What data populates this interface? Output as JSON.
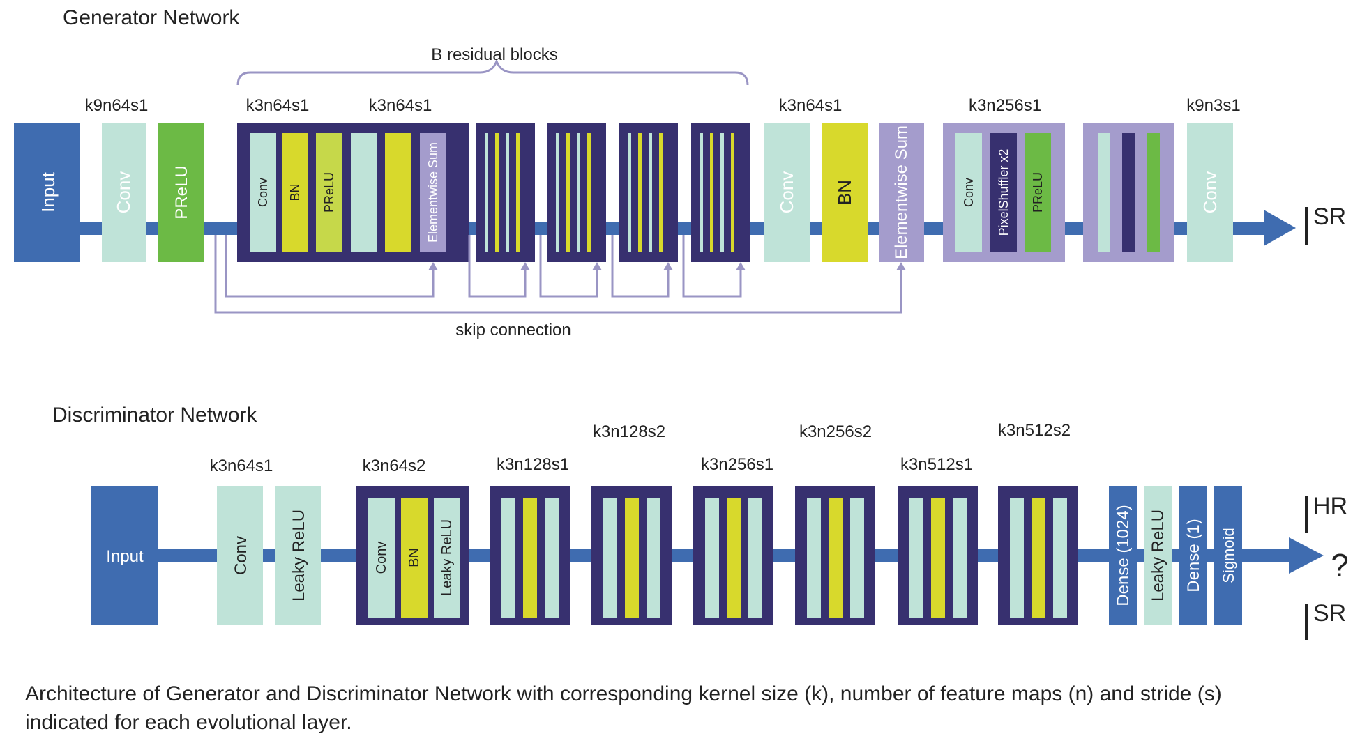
{
  "colors": {
    "input_blue": "#3f6cb0",
    "conv_mint": "#bfe3d8",
    "prelu_green": "#6cba45",
    "bn_yellow": "#d8d92c",
    "block_navy": "#37306f",
    "sum_lavender": "#a49ccc",
    "arrow_blue": "#3f6cb0",
    "skip_line": "#9a95c4",
    "text_dark": "#222222"
  },
  "generator": {
    "title": "Generator Network",
    "input_label": "Input",
    "conv1": {
      "param": "k9n64s1",
      "label": "Conv"
    },
    "prelu1_label": "PReLU",
    "residual": {
      "brace_label": "B residual blocks",
      "param_a": "k3n64s1",
      "param_b": "k3n64s1",
      "conv_label": "Conv",
      "bn_label": "BN",
      "prelu_label": "PReLU",
      "sum_label": "Elementwise Sum"
    },
    "post": {
      "param": "k3n64s1",
      "conv_label": "Conv",
      "bn_label": "BN",
      "sum_label": "Elementwise Sum"
    },
    "upsample": {
      "param": "k3n256s1",
      "conv_label": "Conv",
      "shuffle_label": "PixelShuffler x2",
      "prelu_label": "PReLU"
    },
    "final_conv": {
      "param": "k9n3s1",
      "label": "Conv"
    },
    "skip_label": "skip connection",
    "output": {
      "base": "I",
      "sup": "SR"
    }
  },
  "discriminator": {
    "title": "Discriminator Network",
    "input_label": "Input",
    "conv1": {
      "param": "k3n64s1",
      "label": "Conv"
    },
    "lrelu1_label": "Leaky ReLU",
    "block1": {
      "param": "k3n64s2",
      "conv": "Conv",
      "bn": "BN",
      "lrelu": "Leaky ReLU"
    },
    "block_params": [
      "k3n128s1",
      "k3n128s2",
      "k3n256s1",
      "k3n256s2",
      "k3n512s1",
      "k3n512s2"
    ],
    "dense1_label": "Dense (1024)",
    "lrelu2_label": "Leaky ReLU",
    "dense2_label": "Dense (1)",
    "sigmoid_label": "Sigmoid",
    "hr": {
      "base": "I",
      "sup": "HR"
    },
    "question": "?",
    "sr": {
      "base": "I",
      "sup": "SR"
    }
  },
  "caption": "Architecture of Generator and Discriminator Network with corresponding kernel size (k), number of feature maps (n) and stride (s) indicated for each evolutional layer."
}
